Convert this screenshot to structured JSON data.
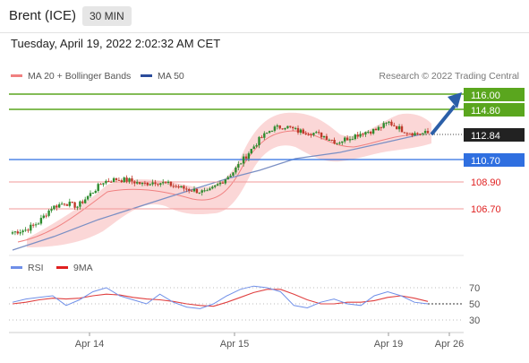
{
  "header": {
    "instrument": "Brent (ICE)",
    "timeframe": "30 MIN"
  },
  "datetime": "Tuesday, April 19, 2022 2:02:32 AM CET",
  "legend": {
    "ma20": {
      "label": "MA 20 + Bollinger Bands",
      "color": "#f08080"
    },
    "ma50": {
      "label": "MA 50",
      "color": "#2b4c9b"
    }
  },
  "credit": "Research © 2022 Trading Central",
  "levels": [
    {
      "value": "116.00",
      "color": "#5aa61e",
      "kind": "resistance"
    },
    {
      "value": "114.80",
      "color": "#5aa61e",
      "kind": "resistance"
    },
    {
      "value": "112.84",
      "color": "#222222",
      "kind": "last-price"
    },
    {
      "value": "110.70",
      "color": "#2f6fe0",
      "kind": "pivot"
    },
    {
      "value": "108.90",
      "color": "#e02020",
      "kind": "support"
    },
    {
      "value": "106.70",
      "color": "#e02020",
      "kind": "support"
    }
  ],
  "rsi_legend": {
    "rsi": {
      "label": "RSI",
      "color": "#6f8fe8"
    },
    "ma": {
      "label": "9MA",
      "color": "#e02020"
    }
  },
  "rsi_levels": [
    "70",
    "50",
    "30"
  ],
  "x_axis": [
    "Apr 14",
    "Apr 15",
    "Apr 19",
    "Apr 26"
  ],
  "colors": {
    "up": "#2e8b2e",
    "down": "#c0392b",
    "band": "#f9c9c9",
    "grid": "#e8e8e8"
  },
  "chart_data": {
    "type": "candlestick",
    "instrument": "Brent (ICE)",
    "timeframe": "30 MIN",
    "price_range": [
      105.5,
      116.5
    ],
    "price_points": [
      104.8,
      105.0,
      105.6,
      106.8,
      107.2,
      106.9,
      107.9,
      108.9,
      109.1,
      109.0,
      108.7,
      108.9,
      108.7,
      108.4,
      108.2,
      108.0,
      108.8,
      109.7,
      111.0,
      112.3,
      113.2,
      113.4,
      113.0,
      112.9,
      112.6,
      112.1,
      112.5,
      112.9,
      113.1,
      113.7,
      113.1,
      112.8,
      112.84
    ],
    "ma50_points": [
      104.5,
      105.4,
      106.5,
      107.4,
      108.5,
      109.7,
      110.5,
      111.3,
      112.1,
      112.8
    ],
    "rsi_range": [
      20,
      80
    ],
    "rsi": [
      52,
      56,
      58,
      60,
      48,
      55,
      65,
      70,
      60,
      55,
      50,
      62,
      52,
      46,
      44,
      50,
      60,
      68,
      72,
      70,
      65,
      48,
      45,
      52,
      56,
      50,
      48,
      60,
      65,
      60,
      52,
      50
    ],
    "rsi_ma": [
      50,
      52,
      55,
      57,
      56,
      57,
      60,
      62,
      61,
      58,
      56,
      55,
      53,
      50,
      48,
      47,
      52,
      58,
      64,
      68,
      68,
      62,
      55,
      50,
      50,
      52,
      52,
      54,
      58,
      60,
      57,
      53
    ]
  }
}
